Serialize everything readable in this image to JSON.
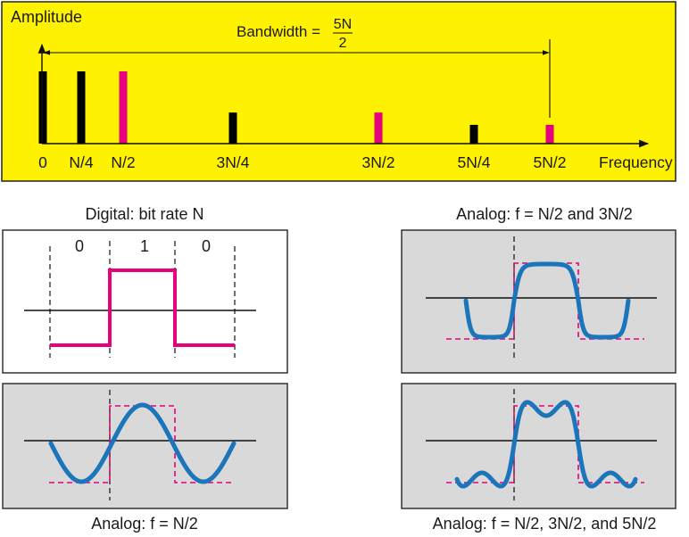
{
  "spectrum": {
    "y_axis_label": "Amplitude",
    "x_axis_label": "Frequency",
    "bandwidth": {
      "label": "Bandwidth =",
      "numerator": "5N",
      "denominator": "2"
    },
    "components": [
      {
        "label": "0",
        "amplitude": 1,
        "color": "#000000"
      },
      {
        "label": "N/4",
        "amplitude": 1,
        "color": "#000000"
      },
      {
        "label": "N/2",
        "amplitude": 1,
        "color": "#e6007e"
      },
      {
        "label": "3N/4",
        "amplitude": 0.43,
        "color": "#000000"
      },
      {
        "label": "3N/2",
        "amplitude": 0.43,
        "color": "#e6007e"
      },
      {
        "label": "5N/4",
        "amplitude": 0.26,
        "color": "#000000"
      },
      {
        "label": "5N/2",
        "amplitude": 0.26,
        "color": "#e6007e"
      }
    ]
  },
  "signals": {
    "digital": {
      "caption": "Digital: bit rate N",
      "bits": [
        "0",
        "1",
        "0"
      ]
    },
    "analog_1": {
      "caption": "Analog: f = N/2"
    },
    "analog_2": {
      "caption": "Analog: f = N/2 and 3N/2"
    },
    "analog_3": {
      "caption": "Analog: f = N/2, 3N/2, and 5N/2"
    }
  },
  "colors": {
    "frame": "#fff200",
    "digital_signal": "#e6007e",
    "analog_signal": "#1b75bb",
    "panel": "#d9d9d9"
  }
}
